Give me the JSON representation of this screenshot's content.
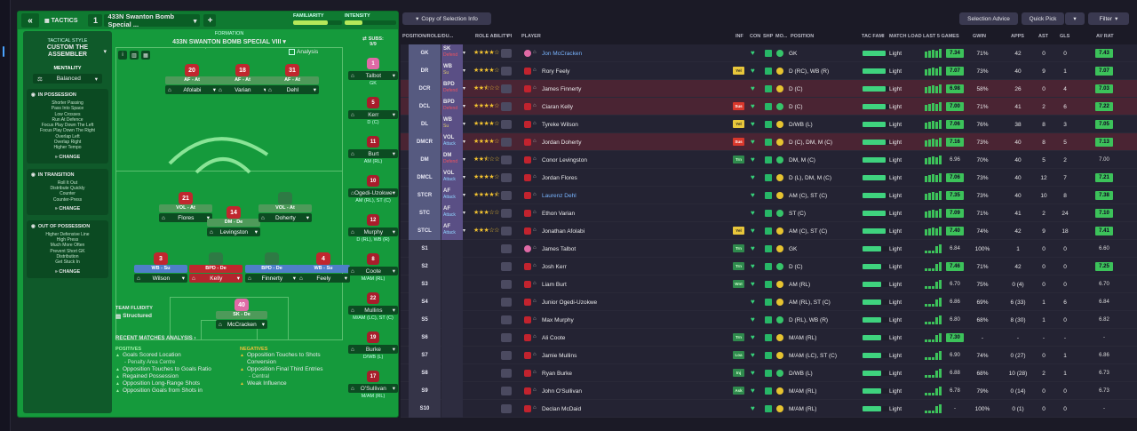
{
  "header": {
    "back_icon": "double-chevron-left-icon",
    "tactics_label": "TACTICS",
    "tactic_number": "1",
    "tactic_name": "433N Swanton Bomb Special ...",
    "add_label": "+",
    "familiarity_label": "FAMILIARITY",
    "familiarity_pct": 70,
    "intensity_label": "INTENSITY",
    "intensity_pct": 35
  },
  "style": {
    "heading": "TACTICAL STYLE",
    "name": "CUSTOM THE ASSEMBLER",
    "mentality_label": "MENTALITY",
    "mentality_value": "Balanced",
    "in_possession": {
      "title": "IN POSSESSION",
      "items": [
        "Shorter Passing",
        "Pass Into Space",
        "Low Crosses",
        "Run At Defence",
        "Focus Play Down The Left",
        "Focus Play Down The Right",
        "Overlap Left",
        "Overlap Right",
        "Higher Tempo"
      ],
      "change": "CHANGE"
    },
    "in_transition": {
      "title": "IN TRANSITION",
      "items": [
        "Roll It Out",
        "Distribute Quickly",
        "Counter",
        "Counter-Press"
      ],
      "change": "CHANGE"
    },
    "out_of_possession": {
      "title": "OUT OF POSSESSION",
      "items": [
        "Higher Defensive Line",
        "High Press",
        "Much More Often",
        "Prevent Short GK",
        "Distribution",
        "Get Stuck In"
      ],
      "change": "CHANGE"
    }
  },
  "formation": {
    "label": "FORMATION",
    "name": "433N SWANTON BOMB SPECIAL VIII",
    "analysis_label": "Analysis",
    "team_fluidity_label": "TEAM FLUIDITY",
    "team_fluidity_value": "Structured",
    "players": [
      {
        "num": "20",
        "role": "AF - At",
        "name": "Afolabi"
      },
      {
        "num": "18",
        "role": "AF - At",
        "name": "Varian"
      },
      {
        "num": "31",
        "role": "AF - At",
        "name": "Dehl"
      },
      {
        "num": "21",
        "role": "VOL - At",
        "name": "Flores"
      },
      {
        "num": "14",
        "role": "DM - De",
        "name": "Levingston"
      },
      {
        "num": "",
        "role": "VOL - At",
        "name": "Doherty"
      },
      {
        "num": "3",
        "role": "WB - Su",
        "name": "Wilson"
      },
      {
        "num": "",
        "role": "BPD - De",
        "name": "Kelly"
      },
      {
        "num": "",
        "role": "BPD - De",
        "name": "Finnerty"
      },
      {
        "num": "4",
        "role": "WB - Su",
        "name": "Feely"
      },
      {
        "num": "40",
        "role": "SK - De",
        "name": "McCracken"
      }
    ]
  },
  "subs": {
    "label": "SUBS:",
    "count": "9/9",
    "items": [
      {
        "num": "1",
        "name": "Talbot",
        "pos": "GK"
      },
      {
        "num": "5",
        "name": "Kerr",
        "pos": "D (C)"
      },
      {
        "num": "11",
        "name": "Burt",
        "pos": "AM (RL)"
      },
      {
        "num": "10",
        "name": "Ogedi-Uzokwe",
        "pos": "AM (RL), ST (C)"
      },
      {
        "num": "12",
        "name": "Murphy",
        "pos": "D (RL), WB (R)"
      },
      {
        "num": "8",
        "name": "Coote",
        "pos": "M/AM (RL)"
      },
      {
        "num": "22",
        "name": "Mullins",
        "pos": "M/AM (LC), ST (C)"
      },
      {
        "num": "19",
        "name": "Burke",
        "pos": "D/WB (L)"
      },
      {
        "num": "17",
        "name": "O'Sullivan",
        "pos": "M/AM (RL)"
      }
    ]
  },
  "analysis": {
    "title": "RECENT MATCHES ANALYSIS",
    "positives_label": "POSITIVES",
    "negatives_label": "NEGATIVES",
    "positives": [
      {
        "t": "Goals Scored Location",
        "s": "- Penalty Area Centre"
      },
      {
        "t": "Opposition Touches to Goals Ratio",
        "s": ""
      },
      {
        "t": "Regained Possession",
        "s": ""
      },
      {
        "t": "Opposition Long-Range Shots",
        "s": ""
      },
      {
        "t": "Opposition Goals from Shots in",
        "s": ""
      }
    ],
    "negatives": [
      {
        "t": "Opposition Touches to Shots Conversion",
        "s": ""
      },
      {
        "t": "Opposition Final Third Entries",
        "s": "- Central"
      },
      {
        "t": "Weak Influence",
        "s": ""
      }
    ]
  },
  "toolbar": {
    "copy_label": "Copy of Selection Info",
    "selection_advice": "Selection Advice",
    "quick_pick": "Quick Pick",
    "filter": "Filter"
  },
  "columns": {
    "posrole": "POSITION/ROLE/DU...",
    "role_ability": "ROLE ABILITY",
    "pi": "PI",
    "player": "PLAYER",
    "inf": "INF",
    "con": "CON",
    "shp": "SHP",
    "mo": "MO...",
    "position": "POSITION",
    "tac_fam": "TAC FAMI",
    "match_load": "MATCH LOAD",
    "last5": "LAST 5 GAMES",
    "gwin": "GWIN",
    "apps": "APPS",
    "ast": "AST",
    "gls": "GLS",
    "av_rat": "AV RAT"
  },
  "rows": [
    {
      "pos": "GK",
      "role": "SK",
      "duty": "Defend",
      "dc": "d",
      "stars": 4,
      "player": "Jon McCracken",
      "blue": true,
      "gk": true,
      "inf": "",
      "position": "GK",
      "load": "Light",
      "ar": "7.34",
      "gwin": "71%",
      "apps": "42",
      "ast": "0",
      "gls": "0",
      "avr": "7.43",
      "red": false,
      "sub": false
    },
    {
      "pos": "DR",
      "role": "WB",
      "duty": "Su",
      "dc": "s",
      "stars": 4,
      "player": "Rory Feely",
      "inf": "Yel",
      "position": "D (RC), WB (R)",
      "load": "Light",
      "ar": "7.07",
      "gwin": "73%",
      "apps": "40",
      "ast": "9",
      "gls": "1",
      "avr": "7.07"
    },
    {
      "pos": "DCR",
      "role": "BPD",
      "duty": "Defend",
      "dc": "d",
      "stars": 2.5,
      "player": "James Finnerty",
      "inf": "",
      "position": "D (C)",
      "load": "Light",
      "ar": "6.98",
      "gwin": "58%",
      "apps": "26",
      "ast": "0",
      "gls": "4",
      "avr": "7.03",
      "red": true
    },
    {
      "pos": "DCL",
      "role": "BPD",
      "duty": "Defend",
      "dc": "d",
      "stars": 4,
      "player": "Ciaran Kelly",
      "inf": "Sus",
      "position": "D (C)",
      "load": "Light",
      "ar": "7.00",
      "gwin": "71%",
      "apps": "41",
      "ast": "2",
      "gls": "6",
      "avr": "7.22",
      "red": true
    },
    {
      "pos": "DL",
      "role": "WB",
      "duty": "Su",
      "dc": "s",
      "stars": 4,
      "player": "Tyreke Wilson",
      "inf": "Yel",
      "position": "D/WB (L)",
      "load": "Light",
      "ar": "7.06",
      "gwin": "76%",
      "apps": "38",
      "ast": "8",
      "gls": "3",
      "avr": "7.05"
    },
    {
      "pos": "DMCR",
      "role": "VOL",
      "duty": "Attack",
      "dc": "a",
      "stars": 4,
      "player": "Jordan Doherty",
      "inf": "Sus",
      "position": "D (C), DM, M (C)",
      "load": "Light",
      "ar": "7.16",
      "gwin": "73%",
      "apps": "40",
      "ast": "8",
      "gls": "5",
      "avr": "7.13",
      "red": true
    },
    {
      "pos": "DM",
      "role": "DM",
      "duty": "Defend",
      "dc": "d",
      "stars": 2.5,
      "player": "Conor Levingston",
      "inf": "Trn",
      "position": "DM, M (C)",
      "load": "Light",
      "ar": "6.96",
      "gwin": "70%",
      "apps": "40",
      "ast": "5",
      "gls": "2",
      "avr": "7.00",
      "arn": true,
      "avrn": true
    },
    {
      "pos": "DMCL",
      "role": "VOL",
      "duty": "Attack",
      "dc": "a",
      "stars": 4,
      "player": "Jordan Flores",
      "inf": "",
      "position": "D (L), DM, M (C)",
      "load": "Light",
      "ar": "7.06",
      "gwin": "73%",
      "apps": "40",
      "ast": "12",
      "gls": "7",
      "avr": "7.21"
    },
    {
      "pos": "STCR",
      "role": "AF",
      "duty": "Attack",
      "dc": "a",
      "stars": 4.5,
      "player": "Laurenz Dehl",
      "blue": true,
      "inf": "",
      "position": "AM (C), ST (C)",
      "load": "Light",
      "ar": "7.35",
      "gwin": "73%",
      "apps": "40",
      "ast": "10",
      "gls": "8",
      "avr": "7.38"
    },
    {
      "pos": "STC",
      "role": "AF",
      "duty": "Attack",
      "dc": "a",
      "stars": 3,
      "player": "Ethon Varian",
      "inf": "",
      "position": "ST (C)",
      "load": "Light",
      "ar": "7.09",
      "gwin": "71%",
      "apps": "41",
      "ast": "2",
      "gls": "24",
      "avr": "7.10"
    },
    {
      "pos": "STCL",
      "role": "AF",
      "duty": "Attack",
      "dc": "a",
      "stars": 3,
      "player": "Jonathan Afolabi",
      "inf": "Yel",
      "position": "AM (C), ST (C)",
      "load": "Light",
      "ar": "7.40",
      "gwin": "74%",
      "apps": "42",
      "ast": "9",
      "gls": "18",
      "avr": "7.41"
    },
    {
      "pos": "S1",
      "sub": true,
      "player": "James Talbot",
      "gk": true,
      "inf": "Trn",
      "position": "GK",
      "load": "Light",
      "ar": "6.84",
      "gwin": "100%",
      "apps": "1",
      "ast": "0",
      "gls": "0",
      "avr": "6.60",
      "arn": true,
      "avrn": true
    },
    {
      "pos": "S2",
      "sub": true,
      "player": "Josh Kerr",
      "inf": "Trn",
      "position": "D (C)",
      "load": "Light",
      "ar": "7.46",
      "gwin": "71%",
      "apps": "42",
      "ast": "0",
      "gls": "0",
      "avr": "7.25"
    },
    {
      "pos": "S3",
      "sub": true,
      "player": "Liam Burt",
      "inf": "Wnt",
      "position": "AM (RL)",
      "load": "Light",
      "ar": "6.70",
      "gwin": "75%",
      "apps": "0 (4)",
      "ast": "0",
      "gls": "0",
      "avr": "6.70",
      "arn": true,
      "avrn": true
    },
    {
      "pos": "S4",
      "sub": true,
      "player": "Junior Ogedi-Uzokwe",
      "inf": "",
      "position": "AM (RL), ST (C)",
      "load": "Light",
      "ar": "6.86",
      "gwin": "69%",
      "apps": "6 (33)",
      "ast": "1",
      "gls": "6",
      "avr": "6.84",
      "arn": true,
      "avrn": true
    },
    {
      "pos": "S5",
      "sub": true,
      "player": "Max Murphy",
      "inf": "",
      "position": "D (RL), WB (R)",
      "load": "Light",
      "ar": "6.80",
      "gwin": "68%",
      "apps": "8 (30)",
      "ast": "1",
      "gls": "0",
      "avr": "6.82",
      "arn": true,
      "avrn": true
    },
    {
      "pos": "S6",
      "sub": true,
      "player": "Ali Coote",
      "inf": "Trn",
      "position": "M/AM (RL)",
      "load": "Light",
      "ar": "7.30",
      "gwin": "-",
      "apps": "-",
      "ast": "-",
      "gls": "-",
      "avr": "-",
      "avrn": true
    },
    {
      "pos": "S7",
      "sub": true,
      "player": "Jamie Mullins",
      "inf": "Loa",
      "position": "M/AM (LC), ST (C)",
      "load": "Light",
      "ar": "6.90",
      "gwin": "74%",
      "apps": "0 (27)",
      "ast": "0",
      "gls": "1",
      "avr": "6.86",
      "arn": true,
      "avrn": true
    },
    {
      "pos": "S8",
      "sub": true,
      "player": "Ryan Burke",
      "inf": "Inj",
      "position": "D/WB (L)",
      "load": "Light",
      "ar": "6.88",
      "gwin": "68%",
      "apps": "10 (28)",
      "ast": "2",
      "gls": "1",
      "avr": "6.73",
      "arn": true,
      "avrn": true
    },
    {
      "pos": "S9",
      "sub": true,
      "player": "John O'Sullivan",
      "inf": "Ask",
      "position": "M/AM (RL)",
      "load": "Light",
      "ar": "6.78",
      "gwin": "79%",
      "apps": "0 (14)",
      "ast": "0",
      "gls": "0",
      "avr": "6.73",
      "arn": true,
      "avrn": true
    },
    {
      "pos": "S10",
      "sub": true,
      "player": "Declan McDaid",
      "inf": "",
      "position": "M/AM (RL)",
      "load": "Light",
      "ar": "-",
      "gwin": "100%",
      "apps": "0 (1)",
      "ast": "0",
      "gls": "0",
      "avr": "-",
      "arn": true,
      "avrn": true
    }
  ]
}
